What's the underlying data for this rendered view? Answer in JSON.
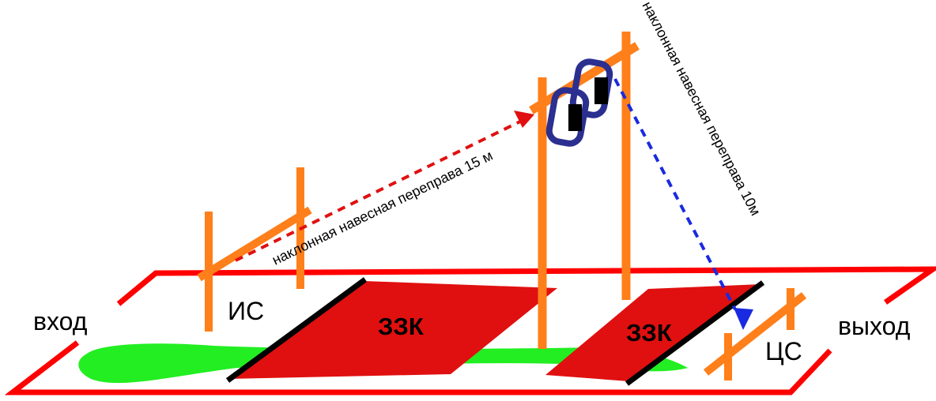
{
  "labels": {
    "entrance": "вход",
    "exit": "выход",
    "start_stage": "ИС",
    "target_stage": "ЦС",
    "danger_zone_1": "ЗЗК",
    "danger_zone_2": "ЗЗК",
    "rope_upper": "наклонная навесная переправа 15 м",
    "rope_lower": "наклонная навесная переправа 10м"
  },
  "colors": {
    "boundary": "#ff0000",
    "pole": "#ff7f1a",
    "danger_zone": "#e01010",
    "zone_edge": "#000000",
    "green_strip": "#22ee22",
    "rope_upper": "#e01010",
    "rope_lower": "#1a2ae0",
    "carabiner": "#2b2f8f"
  }
}
